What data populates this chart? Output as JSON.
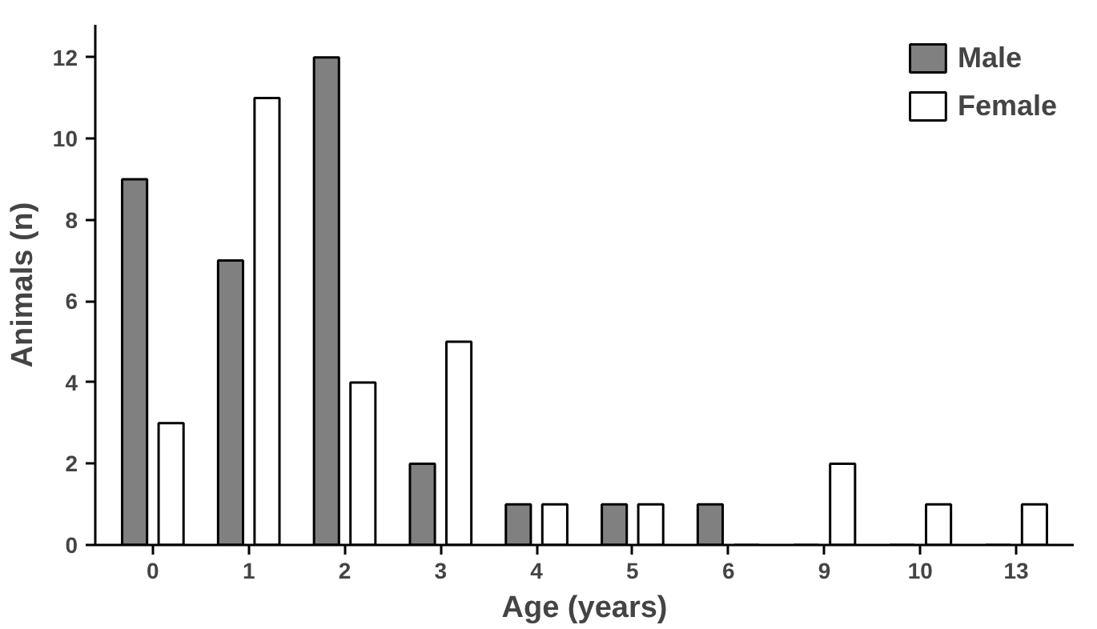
{
  "chart_data": {
    "type": "bar",
    "xlabel": "Age (years)",
    "ylabel": "Animals (n)",
    "categories": [
      "0",
      "1",
      "2",
      "3",
      "4",
      "5",
      "6",
      "9",
      "10",
      "13"
    ],
    "series": [
      {
        "name": "Male",
        "color": "#808080",
        "values": [
          9,
          7,
          12,
          2,
          1,
          1,
          1,
          0,
          0,
          0
        ]
      },
      {
        "name": "Female",
        "color": "#ffffff",
        "values": [
          3,
          11,
          4,
          5,
          1,
          1,
          0,
          2,
          1,
          1
        ]
      }
    ],
    "ylim": [
      0,
      12.8
    ],
    "yticks": [
      0,
      2,
      4,
      6,
      8,
      10,
      12
    ],
    "grid": false,
    "legend": "top right"
  }
}
